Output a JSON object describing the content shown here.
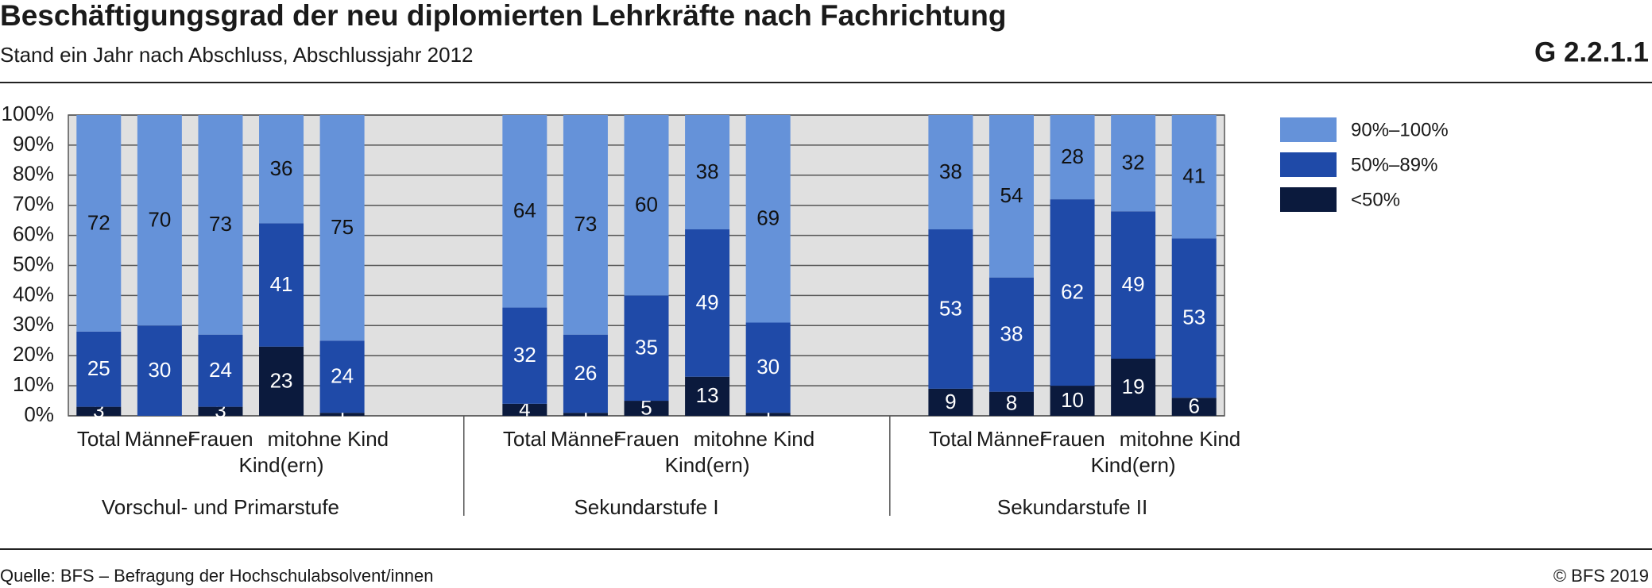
{
  "chart_data": {
    "type": "stacked_bar",
    "title": "Beschäftigungsgrad der neu diplomierten Lehrkräfte nach Fachrichtung",
    "subtitle": "Stand ein Jahr nach Abschluss, Abschlussjahr 2012",
    "chart_id": "G 2.2.1.1",
    "source": "Quelle: BFS – Befragung der Hochschulabsolvent/innen",
    "copyright": "© BFS 2019",
    "group_labels": [
      "Vorschul- und Primarstufe",
      "Sekundarstufe I",
      "Sekundarstufe II"
    ],
    "categories": [
      "Total",
      "Männer",
      "Frauen",
      "mit Kind(ern)",
      "ohne Kind",
      "Total",
      "Männer",
      "Frauen",
      "mit Kind(ern)",
      "ohne Kind",
      "Total",
      "Männer",
      "Frauen",
      "mit Kind(ern)",
      "ohne Kind"
    ],
    "series": [
      {
        "name": "<50%",
        "color": "#0b1a3d",
        "label_color": "#ffffff",
        "values": [
          3,
          null,
          3,
          23,
          1,
          4,
          1,
          5,
          13,
          1,
          9,
          8,
          10,
          19,
          6
        ]
      },
      {
        "name": "50%–89%",
        "color": "#1f4aa8",
        "label_color": "#ffffff",
        "values": [
          25,
          30,
          24,
          41,
          24,
          32,
          26,
          35,
          49,
          30,
          53,
          38,
          62,
          49,
          53
        ]
      },
      {
        "name": "90%–100%",
        "color": "#6592d9",
        "label_color": "#111111",
        "values": [
          72,
          70,
          73,
          36,
          75,
          64,
          73,
          60,
          38,
          69,
          38,
          54,
          28,
          32,
          41
        ]
      }
    ],
    "ylim": [
      0,
      100
    ],
    "yticks": [
      {
        "value": 0,
        "label": "0%"
      },
      {
        "value": 10,
        "label": "10%"
      },
      {
        "value": 20,
        "label": "20%"
      },
      {
        "value": 30,
        "label": "30%"
      },
      {
        "value": 40,
        "label": "40%"
      },
      {
        "value": 50,
        "label": "50%"
      },
      {
        "value": 60,
        "label": "60%"
      },
      {
        "value": 70,
        "label": "70%"
      },
      {
        "value": 80,
        "label": "80%"
      },
      {
        "value": 90,
        "label": "90%"
      },
      {
        "value": 100,
        "label": "100%"
      }
    ],
    "grid": true,
    "legend": "right"
  }
}
